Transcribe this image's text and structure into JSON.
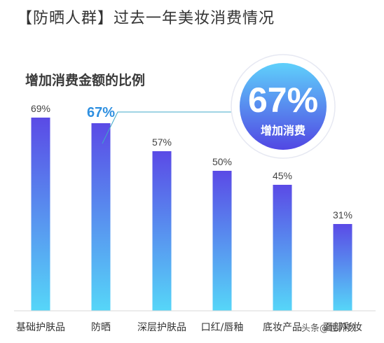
{
  "page": {
    "title": "【防晒人群】过去一年美妆消费情况",
    "subtitle": "增加消费金额的比例",
    "watermark": "头条@世界数"
  },
  "callout": {
    "value": "67%",
    "label": "增加消费"
  },
  "chart_data": {
    "type": "bar",
    "title": "【防晒人群】过去一年美妆消费情况",
    "subtitle": "增加消费金额的比例",
    "categories": [
      "基础护肤品",
      "防晒",
      "深层护肤品",
      "口红/唇釉",
      "底妆产品",
      "面部彩妆"
    ],
    "values": [
      69,
      67,
      57,
      50,
      45,
      31
    ],
    "value_labels": [
      "69%",
      "67%",
      "57%",
      "50%",
      "45%",
      "31%"
    ],
    "highlight_index": 1,
    "ylim": [
      0,
      100
    ],
    "grid": false,
    "colors": {
      "bar_top": "#5a4ae6",
      "bar_bottom": "#56d6f8",
      "highlight_label": "#2e8fe0",
      "label": "#444444"
    }
  }
}
